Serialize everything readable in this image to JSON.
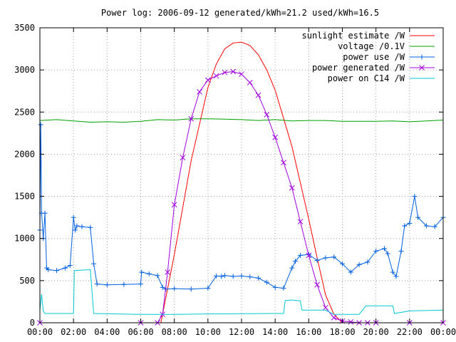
{
  "chart_data": {
    "type": "line",
    "title": "Power log: 2006-09-12 generated/kWh=21.2 used/kWh=16.5",
    "xlabel": "",
    "ylabel": "",
    "x_unit": "hour of day",
    "xlim": [
      0,
      24
    ],
    "ylim": [
      0,
      3500
    ],
    "yticks": [
      0,
      500,
      1000,
      1500,
      2000,
      2500,
      3000,
      3500
    ],
    "xtick_values": [
      0,
      2,
      4,
      6,
      8,
      10,
      12,
      14,
      16,
      18,
      20,
      22,
      24
    ],
    "xtick_labels": [
      "00:00",
      "02:00",
      "04:00",
      "06:00",
      "08:00",
      "10:00",
      "12:00",
      "14:00",
      "16:00",
      "18:00",
      "20:00",
      "22:00",
      "00:00"
    ],
    "grid": true,
    "legend_position": "top-right",
    "series": [
      {
        "name": "sunlight estimate /W",
        "color": "#ff0000",
        "marker": "none",
        "x": [
          7.2,
          8.0,
          9.0,
          10.0,
          10.5,
          11.0,
          11.5,
          12.0,
          12.5,
          13.0,
          13.5,
          14.0,
          15.0,
          16.0,
          16.5,
          17.0,
          17.5,
          18.0
        ],
        "y": [
          0,
          810,
          1925,
          2790,
          3070,
          3250,
          3320,
          3330,
          3290,
          3180,
          3000,
          2760,
          2090,
          1230,
          770,
          330,
          100,
          0
        ]
      },
      {
        "name": "voltage /0.1V",
        "color": "#00a000",
        "marker": "none",
        "x": [
          0,
          1.0,
          2.0,
          3.0,
          4.0,
          5.0,
          6.0,
          7.0,
          8.0,
          9.0,
          10.0,
          11.0,
          12.0,
          13.0,
          14.0,
          15.0,
          16.0,
          17.0,
          18.0,
          19.0,
          20.0,
          21.0,
          22.0,
          23.0,
          24.0
        ],
        "y": [
          2400,
          2410,
          2395,
          2380,
          2385,
          2380,
          2390,
          2410,
          2405,
          2420,
          2420,
          2415,
          2410,
          2400,
          2410,
          2395,
          2400,
          2400,
          2390,
          2390,
          2390,
          2395,
          2385,
          2395,
          2405
        ]
      },
      {
        "name": "power use /W",
        "color": "#0060e0",
        "marker": "plus",
        "x": [
          0,
          0.05,
          0.1,
          0.2,
          0.3,
          0.4,
          0.5,
          1.0,
          1.5,
          1.8,
          2.0,
          2.1,
          2.2,
          2.5,
          3.0,
          3.2,
          3.4,
          4.0,
          5.0,
          6.0,
          6.05,
          6.5,
          7.0,
          7.3,
          7.5,
          8.0,
          9.0,
          10.0,
          10.5,
          10.8,
          11.0,
          11.5,
          12.0,
          12.5,
          13.0,
          13.5,
          14.0,
          14.5,
          15.0,
          15.2,
          15.5,
          16.0,
          16.5,
          17.0,
          17.5,
          18.0,
          18.5,
          19.0,
          19.5,
          20.0,
          20.5,
          20.7,
          21.0,
          21.2,
          21.5,
          21.7,
          22.0,
          22.3,
          22.5,
          23.0,
          23.5,
          24.0
        ],
        "y": [
          1100,
          2350,
          1300,
          1000,
          1300,
          650,
          630,
          620,
          650,
          680,
          1250,
          1100,
          1150,
          1140,
          1130,
          700,
          460,
          450,
          455,
          460,
          600,
          580,
          560,
          420,
          400,
          405,
          400,
          410,
          555,
          550,
          560,
          550,
          555,
          545,
          530,
          480,
          420,
          410,
          650,
          730,
          800,
          810,
          740,
          770,
          780,
          700,
          600,
          690,
          720,
          850,
          880,
          820,
          600,
          550,
          850,
          1150,
          1180,
          1500,
          1250,
          1150,
          1140,
          1250
        ]
      },
      {
        "name": "power generated /W",
        "color": "#a000e0",
        "marker": "cross",
        "x": [
          0,
          6.0,
          7.0,
          7.3,
          7.6,
          8.0,
          8.5,
          9.0,
          9.5,
          10.0,
          10.5,
          11.0,
          11.5,
          12.0,
          12.5,
          13.0,
          13.5,
          14.0,
          14.5,
          15.0,
          15.5,
          16.0,
          16.5,
          17.0,
          17.5,
          18.0,
          18.5,
          19.0,
          19.5,
          20.0,
          22.0,
          24.0
        ],
        "y": [
          0,
          0,
          0,
          100,
          600,
          1400,
          1960,
          2420,
          2740,
          2880,
          2930,
          2970,
          2980,
          2950,
          2850,
          2700,
          2470,
          2200,
          1900,
          1600,
          1200,
          800,
          450,
          180,
          60,
          20,
          10,
          0,
          0,
          0,
          0,
          0
        ]
      },
      {
        "name": "power on C14 /W",
        "color": "#00c8d0",
        "marker": "none",
        "x": [
          0,
          0.1,
          0.2,
          0.3,
          2.0,
          2.05,
          3.0,
          3.2,
          6.0,
          8.0,
          10.0,
          14.0,
          14.5,
          14.6,
          15.0,
          15.5,
          15.6,
          16.0,
          17.0,
          17.5,
          19.0,
          19.4,
          20.0,
          21.0,
          21.1,
          22.0,
          24.0
        ],
        "y": [
          150,
          340,
          140,
          110,
          110,
          620,
          630,
          110,
          100,
          100,
          105,
          110,
          110,
          265,
          270,
          260,
          150,
          150,
          150,
          100,
          100,
          200,
          200,
          200,
          110,
          140,
          150
        ]
      }
    ]
  }
}
